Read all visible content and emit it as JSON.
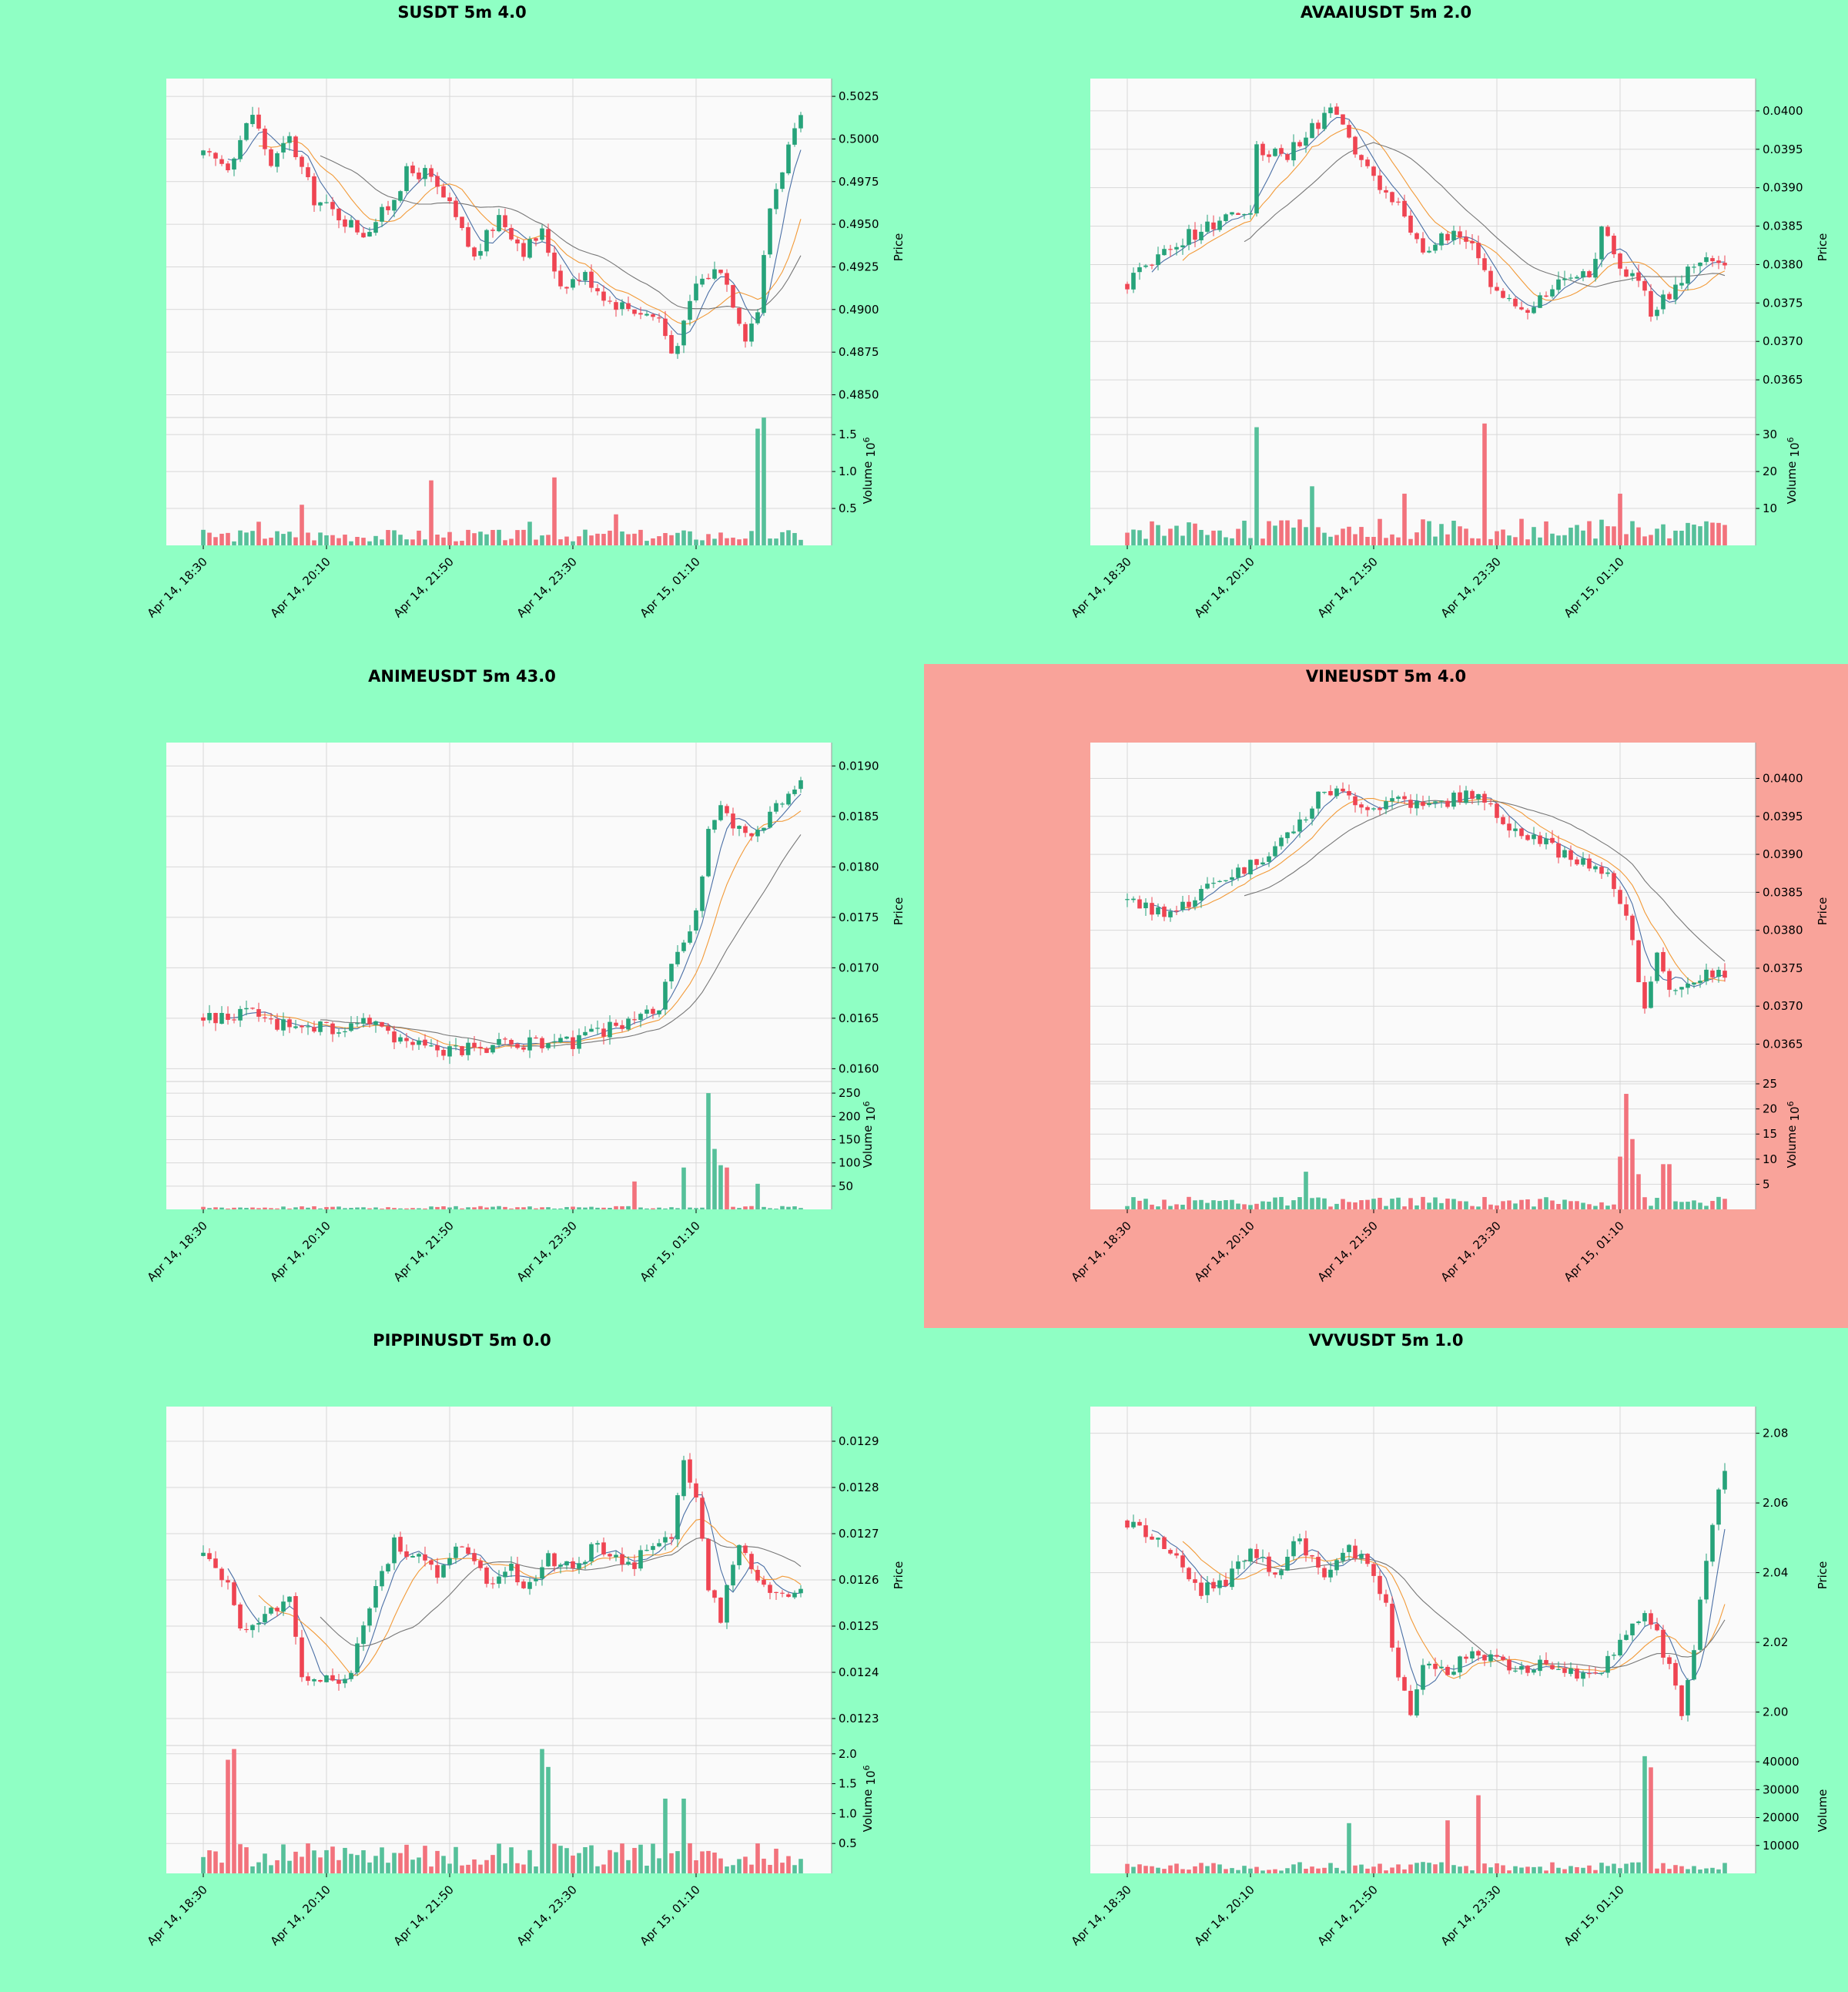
{
  "colors": {
    "background": "#8FFFC4",
    "highlight": "#F9A39A",
    "up": "#26A37A",
    "down": "#EF4452",
    "up_volume": "#56C09A",
    "down_volume": "#F2727C",
    "ma_short": "#4A6FA5",
    "ma_mid": "#F29A38",
    "ma_long": "#777777"
  },
  "chart_data": [
    {
      "type": "candlestick",
      "title": "SUSDT 5m 4.0",
      "highlighted": false,
      "ylabel": "Price",
      "vlabel": "Volume",
      "vexp": "6",
      "price_ticks": [
        "0.4850",
        "0.4875",
        "0.4900",
        "0.4925",
        "0.4950",
        "0.4975",
        "0.5000",
        "0.5025"
      ],
      "price_range": [
        0.4843,
        0.503
      ],
      "vol_ticks": [
        "0.5",
        "1.0",
        "1.5"
      ],
      "vol_range": [
        0,
        1.7
      ],
      "x_ticks": [
        "Apr 14, 18:30",
        "Apr 14, 20:10",
        "Apr 14, 21:50",
        "Apr 14, 23:30",
        "Apr 15, 01:10"
      ],
      "anchors": [
        [
          0,
          0.499
        ],
        [
          4,
          0.4985
        ],
        [
          8,
          0.5015
        ],
        [
          11,
          0.4985
        ],
        [
          14,
          0.5
        ],
        [
          18,
          0.4965
        ],
        [
          22,
          0.4955
        ],
        [
          26,
          0.4945
        ],
        [
          30,
          0.496
        ],
        [
          33,
          0.498
        ],
        [
          36,
          0.498
        ],
        [
          40,
          0.496
        ],
        [
          44,
          0.493
        ],
        [
          48,
          0.4955
        ],
        [
          52,
          0.4935
        ],
        [
          55,
          0.4945
        ],
        [
          58,
          0.4915
        ],
        [
          62,
          0.492
        ],
        [
          66,
          0.4905
        ],
        [
          70,
          0.49
        ],
        [
          74,
          0.4895
        ],
        [
          76,
          0.4875
        ],
        [
          78,
          0.489
        ],
        [
          80,
          0.4915
        ],
        [
          84,
          0.4925
        ],
        [
          86,
          0.4905
        ],
        [
          88,
          0.4885
        ],
        [
          90,
          0.49
        ],
        [
          92,
          0.496
        ],
        [
          95,
          0.4995
        ],
        [
          97,
          0.501
        ]
      ],
      "vol_base": 0.12,
      "vol_spikes": [
        [
          9,
          0.32
        ],
        [
          16,
          0.55
        ],
        [
          37,
          0.88
        ],
        [
          53,
          0.32
        ],
        [
          57,
          0.92
        ],
        [
          67,
          0.42
        ],
        [
          90,
          1.58
        ],
        [
          91,
          1.73
        ]
      ]
    },
    {
      "type": "candlestick",
      "title": "AVAAIUSDT 5m 2.0",
      "highlighted": false,
      "ylabel": "Price",
      "vlabel": "Volume",
      "vexp": "6",
      "price_ticks": [
        "0.0365",
        "0.0370",
        "0.0375",
        "0.0380",
        "0.0385",
        "0.0390",
        "0.0395",
        "0.0400"
      ],
      "price_range": [
        0.03615,
        0.0403
      ],
      "vol_ticks": [
        "10",
        "20",
        "30"
      ],
      "vol_range": [
        0,
        34
      ],
      "x_ticks": [
        "Apr 14, 18:30",
        "Apr 14, 20:10",
        "Apr 14, 21:50",
        "Apr 14, 23:30",
        "Apr 15, 01:10"
      ],
      "anchors": [
        [
          0,
          0.03775
        ],
        [
          4,
          0.03805
        ],
        [
          8,
          0.0383
        ],
        [
          12,
          0.03845
        ],
        [
          16,
          0.03865
        ],
        [
          20,
          0.0386
        ],
        [
          21,
          0.0395
        ],
        [
          26,
          0.03945
        ],
        [
          30,
          0.03975
        ],
        [
          33,
          0.04
        ],
        [
          36,
          0.0396
        ],
        [
          40,
          0.0391
        ],
        [
          44,
          0.0388
        ],
        [
          48,
          0.0382
        ],
        [
          52,
          0.0384
        ],
        [
          55,
          0.0383
        ],
        [
          58,
          0.038
        ],
        [
          60,
          0.0376
        ],
        [
          64,
          0.0374
        ],
        [
          68,
          0.0376
        ],
        [
          72,
          0.0379
        ],
        [
          75,
          0.0378
        ],
        [
          77,
          0.0385
        ],
        [
          80,
          0.0379
        ],
        [
          83,
          0.0378
        ],
        [
          85,
          0.0374
        ],
        [
          88,
          0.0376
        ],
        [
          91,
          0.0379
        ],
        [
          94,
          0.03805
        ],
        [
          96,
          0.038
        ]
      ],
      "vol_base": 4,
      "vol_spikes": [
        [
          21,
          32
        ],
        [
          30,
          16
        ],
        [
          45,
          14
        ],
        [
          58,
          33
        ],
        [
          80,
          14
        ]
      ]
    },
    {
      "type": "candlestick",
      "title": "ANIMEUSDT 5m 43.0",
      "highlighted": false,
      "ylabel": "Price",
      "vlabel": "Volume",
      "vexp": "6",
      "price_ticks": [
        "0.0160",
        "0.0165",
        "0.0170",
        "0.0175",
        "0.0180",
        "0.0185",
        "0.0190"
      ],
      "price_range": [
        0.01598,
        0.01914
      ],
      "vol_ticks": [
        "50",
        "100",
        "150",
        "200",
        "250"
      ],
      "vol_range": [
        0,
        270
      ],
      "x_ticks": [
        "Apr 14, 18:30",
        "Apr 14, 20:10",
        "Apr 14, 21:50",
        "Apr 14, 23:30",
        "Apr 15, 01:10"
      ],
      "anchors": [
        [
          0,
          0.0165
        ],
        [
          8,
          0.01655
        ],
        [
          12,
          0.01645
        ],
        [
          20,
          0.0164
        ],
        [
          26,
          0.01645
        ],
        [
          30,
          0.01635
        ],
        [
          36,
          0.0162
        ],
        [
          44,
          0.0162
        ],
        [
          52,
          0.01625
        ],
        [
          60,
          0.01625
        ],
        [
          64,
          0.01635
        ],
        [
          68,
          0.01645
        ],
        [
          72,
          0.01655
        ],
        [
          74,
          0.0166
        ],
        [
          76,
          0.017
        ],
        [
          78,
          0.0172
        ],
        [
          80,
          0.0175
        ],
        [
          82,
          0.0184
        ],
        [
          84,
          0.0186
        ],
        [
          86,
          0.0184
        ],
        [
          88,
          0.01835
        ],
        [
          90,
          0.0184
        ],
        [
          92,
          0.0185
        ],
        [
          96,
          0.0188
        ]
      ],
      "vol_base": 4,
      "vol_spikes": [
        [
          70,
          60
        ],
        [
          78,
          90
        ],
        [
          82,
          250
        ],
        [
          83,
          130
        ],
        [
          84,
          95
        ],
        [
          85,
          90
        ],
        [
          90,
          55
        ]
      ]
    },
    {
      "type": "candlestick",
      "title": "VINEUSDT 5m 4.0",
      "highlighted": true,
      "ylabel": "Price",
      "vlabel": "Volume",
      "vexp": "6",
      "price_ticks": [
        "0.0365",
        "0.0370",
        "0.0375",
        "0.0380",
        "0.0385",
        "0.0390",
        "0.0395",
        "0.0400"
      ],
      "price_range": [
        0.03615,
        0.04035
      ],
      "vol_ticks": [
        "5",
        "10",
        "15",
        "20",
        "25"
      ],
      "vol_range": [
        0,
        25
      ],
      "x_ticks": [
        "Apr 14, 18:30",
        "Apr 14, 20:10",
        "Apr 14, 21:50",
        "Apr 14, 23:30",
        "Apr 15, 01:10"
      ],
      "anchors": [
        [
          0,
          0.0384
        ],
        [
          4,
          0.03825
        ],
        [
          8,
          0.03825
        ],
        [
          12,
          0.0385
        ],
        [
          16,
          0.0387
        ],
        [
          20,
          0.03885
        ],
        [
          24,
          0.0391
        ],
        [
          28,
          0.0394
        ],
        [
          32,
          0.03985
        ],
        [
          36,
          0.03975
        ],
        [
          40,
          0.0396
        ],
        [
          44,
          0.03975
        ],
        [
          48,
          0.0396
        ],
        [
          52,
          0.0397
        ],
        [
          56,
          0.0398
        ],
        [
          60,
          0.0395
        ],
        [
          64,
          0.0393
        ],
        [
          68,
          0.03915
        ],
        [
          72,
          0.03895
        ],
        [
          76,
          0.03885
        ],
        [
          78,
          0.0387
        ],
        [
          80,
          0.0384
        ],
        [
          82,
          0.0378
        ],
        [
          84,
          0.037
        ],
        [
          86,
          0.0377
        ],
        [
          88,
          0.0372
        ],
        [
          90,
          0.0373
        ],
        [
          92,
          0.0374
        ]
      ],
      "vol_base": 1.4,
      "vol_spikes": [
        [
          29,
          7.5
        ],
        [
          80,
          10.5
        ],
        [
          81,
          23
        ],
        [
          82,
          14
        ],
        [
          83,
          7
        ],
        [
          87,
          9
        ],
        [
          88,
          9
        ]
      ]
    },
    {
      "type": "candlestick",
      "title": "PIPPINUSDT 5m 0.0",
      "highlighted": false,
      "ylabel": "Price",
      "vlabel": "Volume",
      "vexp": "6",
      "price_ticks": [
        "0.0123",
        "0.0124",
        "0.0125",
        "0.0126",
        "0.0127",
        "0.0128",
        "0.0129"
      ],
      "price_range": [
        0.012265,
        0.012955
      ],
      "vol_ticks": [
        "0.5",
        "1.0",
        "1.5",
        "2.0"
      ],
      "vol_range": [
        0,
        2.1
      ],
      "x_ticks": [
        "Apr 14, 18:30",
        "Apr 14, 20:10",
        "Apr 14, 21:50",
        "Apr 14, 23:30",
        "Apr 15, 01:10"
      ],
      "anchors": [
        [
          0,
          0.01265
        ],
        [
          4,
          0.0126
        ],
        [
          6,
          0.0125
        ],
        [
          10,
          0.01252
        ],
        [
          14,
          0.01255
        ],
        [
          16,
          0.0124
        ],
        [
          20,
          0.01238
        ],
        [
          24,
          0.0124
        ],
        [
          27,
          0.01255
        ],
        [
          31,
          0.01268
        ],
        [
          35,
          0.01265
        ],
        [
          38,
          0.01262
        ],
        [
          42,
          0.01268
        ],
        [
          46,
          0.0126
        ],
        [
          50,
          0.01262
        ],
        [
          53,
          0.01258
        ],
        [
          56,
          0.01265
        ],
        [
          60,
          0.01262
        ],
        [
          64,
          0.01268
        ],
        [
          67,
          0.01264
        ],
        [
          70,
          0.01262
        ],
        [
          72,
          0.01268
        ],
        [
          76,
          0.0127
        ],
        [
          78,
          0.01285
        ],
        [
          80,
          0.01278
        ],
        [
          82,
          0.01258
        ],
        [
          84,
          0.01252
        ],
        [
          87,
          0.01268
        ],
        [
          89,
          0.01262
        ],
        [
          92,
          0.01258
        ],
        [
          94,
          0.01257
        ]
      ],
      "vol_base": 0.28,
      "vol_spikes": [
        [
          4,
          1.9
        ],
        [
          5,
          2.08
        ],
        [
          55,
          2.08
        ],
        [
          56,
          1.78
        ],
        [
          75,
          1.25
        ],
        [
          78,
          1.25
        ]
      ]
    },
    {
      "type": "candlestick",
      "title": "VVVUSDT 5m 1.0",
      "highlighted": false,
      "ylabel": "Price",
      "vlabel": "Volume",
      "vexp": "",
      "price_ticks": [
        "2.00",
        "2.02",
        "2.04",
        "2.06",
        "2.08"
      ],
      "price_range": [
        1.9935,
        2.085
      ],
      "vol_ticks": [
        "10000",
        "20000",
        "30000",
        "40000"
      ],
      "vol_range": [
        0,
        45000
      ],
      "x_ticks": [
        "Apr 14, 18:30",
        "Apr 14, 20:10",
        "Apr 14, 21:50",
        "Apr 14, 23:30",
        "Apr 15, 01:10"
      ],
      "anchors": [
        [
          0,
          2.055
        ],
        [
          4,
          2.05
        ],
        [
          8,
          2.043
        ],
        [
          12,
          2.035
        ],
        [
          16,
          2.038
        ],
        [
          20,
          2.045
        ],
        [
          24,
          2.04
        ],
        [
          28,
          2.05
        ],
        [
          32,
          2.037
        ],
        [
          36,
          2.048
        ],
        [
          40,
          2.04
        ],
        [
          42,
          2.03
        ],
        [
          44,
          2.01
        ],
        [
          46,
          2.0
        ],
        [
          48,
          2.015
        ],
        [
          52,
          2.012
        ],
        [
          56,
          2.018
        ],
        [
          60,
          2.014
        ],
        [
          64,
          2.012
        ],
        [
          68,
          2.015
        ],
        [
          72,
          2.012
        ],
        [
          76,
          2.01
        ],
        [
          80,
          2.02
        ],
        [
          84,
          2.027
        ],
        [
          86,
          2.022
        ],
        [
          88,
          2.012
        ],
        [
          90,
          2.0
        ],
        [
          92,
          2.018
        ],
        [
          94,
          2.045
        ],
        [
          96,
          2.065
        ],
        [
          98,
          2.075
        ]
      ],
      "vol_base": 2300,
      "vol_spikes": [
        [
          36,
          18000
        ],
        [
          52,
          19000
        ],
        [
          57,
          28000
        ],
        [
          84,
          42000
        ],
        [
          85,
          38000
        ]
      ]
    }
  ]
}
